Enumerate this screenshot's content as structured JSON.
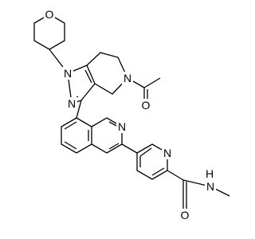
{
  "atoms": [
    {
      "label": "O"
    },
    {
      "label": "N"
    },
    {
      "label": "N"
    },
    {
      "label": "N"
    },
    {
      "label": "O"
    },
    {
      "label": "N"
    },
    {
      "label": "N"
    },
    {
      "label": "O"
    },
    {
      "label": "H"
    },
    {
      "label": "N"
    }
  ]
}
